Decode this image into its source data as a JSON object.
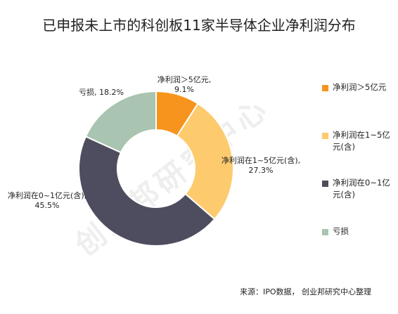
{
  "chart_data": {
    "type": "pie",
    "title": "已申报未上市的科创板11家半导体企业净利润分布",
    "slices": [
      {
        "label": "净利润＞5亿元",
        "value": 9.1,
        "display_label": "净利润＞5亿元,",
        "display_pct": "9.1%",
        "color": "#F7941D"
      },
      {
        "label": "净利润在1~5亿元(含)",
        "value": 27.3,
        "display_label": "净利润在1~5亿元(含),",
        "display_pct": "27.3%",
        "color": "#FDCB6E"
      },
      {
        "label": "净利润在0~1亿元(含)",
        "value": 45.5,
        "display_label": "净利润在0~1亿元(含),",
        "display_pct": "45.5%",
        "color": "#4D4D5F"
      },
      {
        "label": "亏损",
        "value": 18.2,
        "display_label": "亏损, 18.2%",
        "display_pct": "",
        "color": "#A9C4B0"
      }
    ],
    "legend": {
      "placement": "right",
      "entries": [
        "净利润＞5亿元",
        "净利润在1~5亿元(含)",
        "净利润在0~1亿元(含)",
        "亏损"
      ]
    },
    "inner_radius_ratio": 0.5
  },
  "source": "来源：IPO数据， 创业邦研究中心整理",
  "watermark": "创业邦研究中心"
}
